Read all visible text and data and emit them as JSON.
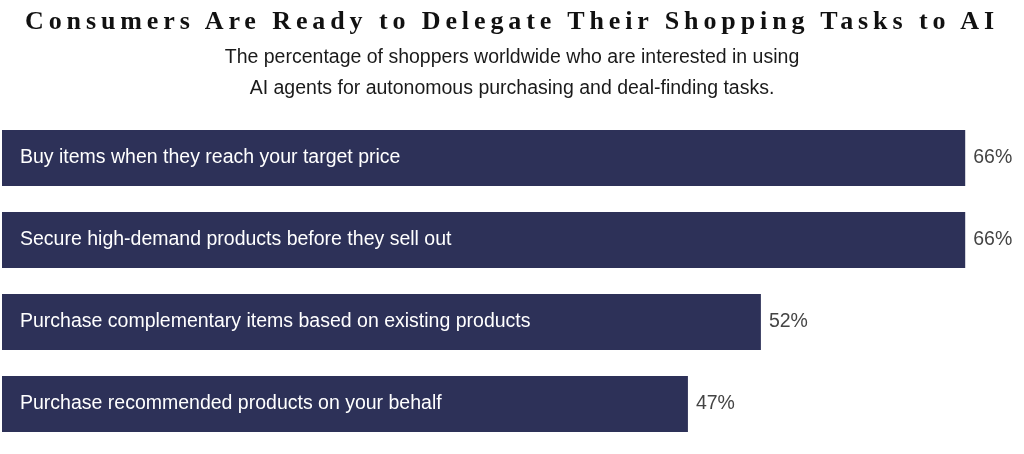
{
  "chart_data": {
    "type": "bar",
    "orientation": "horizontal",
    "title": "Consumers Are Ready to Delegate Their Shopping Tasks to AI",
    "subtitle": "The percentage of shoppers worldwide who are interested in using\nAI agents for autonomous purchasing and deal-finding tasks.",
    "categories": [
      "Buy items when they reach your target price",
      "Secure high-demand products before they sell out",
      "Purchase complementary items based on existing products",
      "Purchase recommended products on your behalf"
    ],
    "values": [
      66,
      66,
      52,
      47
    ],
    "value_labels": [
      "66%",
      "66%",
      "52%",
      "47%"
    ],
    "color": "#2d3158",
    "tick_labels": "y"
  }
}
